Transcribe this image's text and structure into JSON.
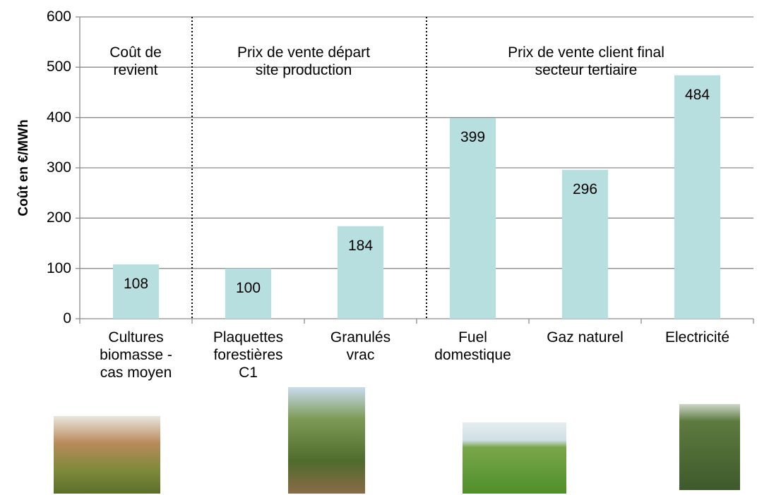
{
  "chart_data": {
    "type": "bar",
    "y_axis_label": "Coût en €/MWh",
    "categories": [
      "Cultures\nbiomasse -\ncas moyen",
      "Plaquettes\nforestières\nC1",
      "Granulés\nvrac",
      "Fuel\ndomestique",
      "Gaz naturel",
      "Electricité"
    ],
    "values": [
      108,
      100,
      184,
      399,
      296,
      484
    ],
    "color": "#b7dfe0",
    "ylim": [
      0,
      600
    ],
    "yticks": [
      0,
      100,
      200,
      300,
      400,
      500,
      600
    ],
    "grid": true,
    "annotations": [
      "Coût de\nrevient",
      "Prix de vente départ\nsite production",
      "Prix de vente client final\nsecteur tertiaire"
    ]
  }
}
